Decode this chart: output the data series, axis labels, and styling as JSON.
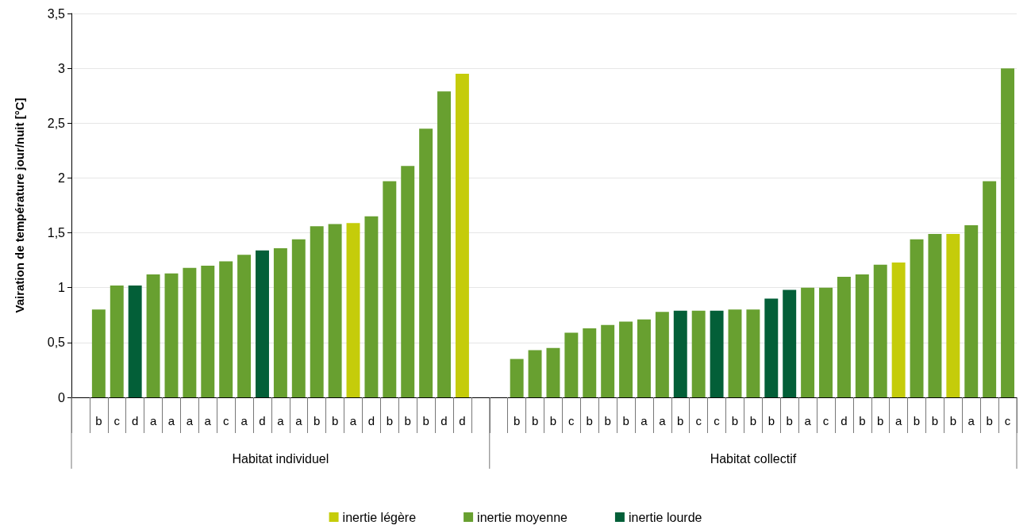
{
  "chart_data": {
    "type": "bar",
    "ylabel": "Vairation de température jour/nuit [°C]",
    "categories": [
      null,
      "b",
      "c",
      "d",
      "a",
      "a",
      "a",
      "a",
      "c",
      "a",
      "d",
      "a",
      "a",
      "b",
      "b",
      "a",
      "d",
      "b",
      "b",
      "b",
      "d",
      "d",
      null,
      null,
      "b",
      "b",
      "b",
      "c",
      "b",
      "b",
      "b",
      "a",
      "a",
      "b",
      "c",
      "c",
      "b",
      "b",
      "b",
      "b",
      "a",
      "c",
      "d",
      "b",
      "b",
      "a",
      "b",
      "b",
      "b",
      "a",
      "b",
      "c"
    ],
    "series": [
      {
        "name": "inertie légère",
        "color": "#c5cc0a",
        "values": [
          null,
          null,
          null,
          null,
          null,
          null,
          null,
          null,
          null,
          null,
          null,
          null,
          null,
          null,
          null,
          1.59,
          null,
          null,
          null,
          null,
          null,
          2.95,
          null,
          null,
          null,
          null,
          null,
          null,
          null,
          null,
          null,
          null,
          null,
          null,
          null,
          null,
          null,
          null,
          null,
          null,
          null,
          null,
          null,
          null,
          null,
          1.23,
          null,
          null,
          1.49,
          null,
          null,
          null
        ]
      },
      {
        "name": "inertie moyenne",
        "color": "#68a030",
        "values": [
          null,
          0.8,
          1.02,
          null,
          1.12,
          1.13,
          1.18,
          1.2,
          1.24,
          1.3,
          null,
          1.36,
          1.44,
          1.56,
          1.58,
          null,
          1.65,
          1.97,
          2.11,
          2.45,
          2.79,
          null,
          null,
          null,
          0.35,
          0.43,
          0.45,
          0.59,
          0.63,
          0.66,
          0.69,
          0.71,
          0.78,
          null,
          0.79,
          null,
          0.8,
          0.8,
          null,
          null,
          1.0,
          1.0,
          1.1,
          1.12,
          1.21,
          null,
          1.44,
          1.49,
          null,
          1.57,
          1.97,
          3.0
        ]
      },
      {
        "name": "inertie lourde",
        "color": "#035f38",
        "values": [
          null,
          null,
          null,
          1.02,
          null,
          null,
          null,
          null,
          null,
          null,
          1.34,
          null,
          null,
          null,
          null,
          null,
          null,
          null,
          null,
          null,
          null,
          null,
          null,
          null,
          null,
          null,
          null,
          null,
          null,
          null,
          null,
          null,
          null,
          0.79,
          null,
          0.79,
          null,
          null,
          0.9,
          0.98,
          null,
          null,
          null,
          null,
          null,
          null,
          null,
          null,
          null,
          null,
          null,
          null
        ]
      }
    ],
    "annotations": [
      "Habitat individuel",
      "Habitat collectif"
    ],
    "ylim": [
      0,
      3.5
    ],
    "yticks": [
      0,
      {
        "value": 0.5,
        "label": "0,5"
      },
      1,
      {
        "value": 1.5,
        "label": "1,5"
      },
      2,
      {
        "value": 2.5,
        "label": "2,5"
      },
      3,
      {
        "value": 3.5,
        "label": "3,5"
      }
    ],
    "grid": "y",
    "legend": "bottom"
  }
}
